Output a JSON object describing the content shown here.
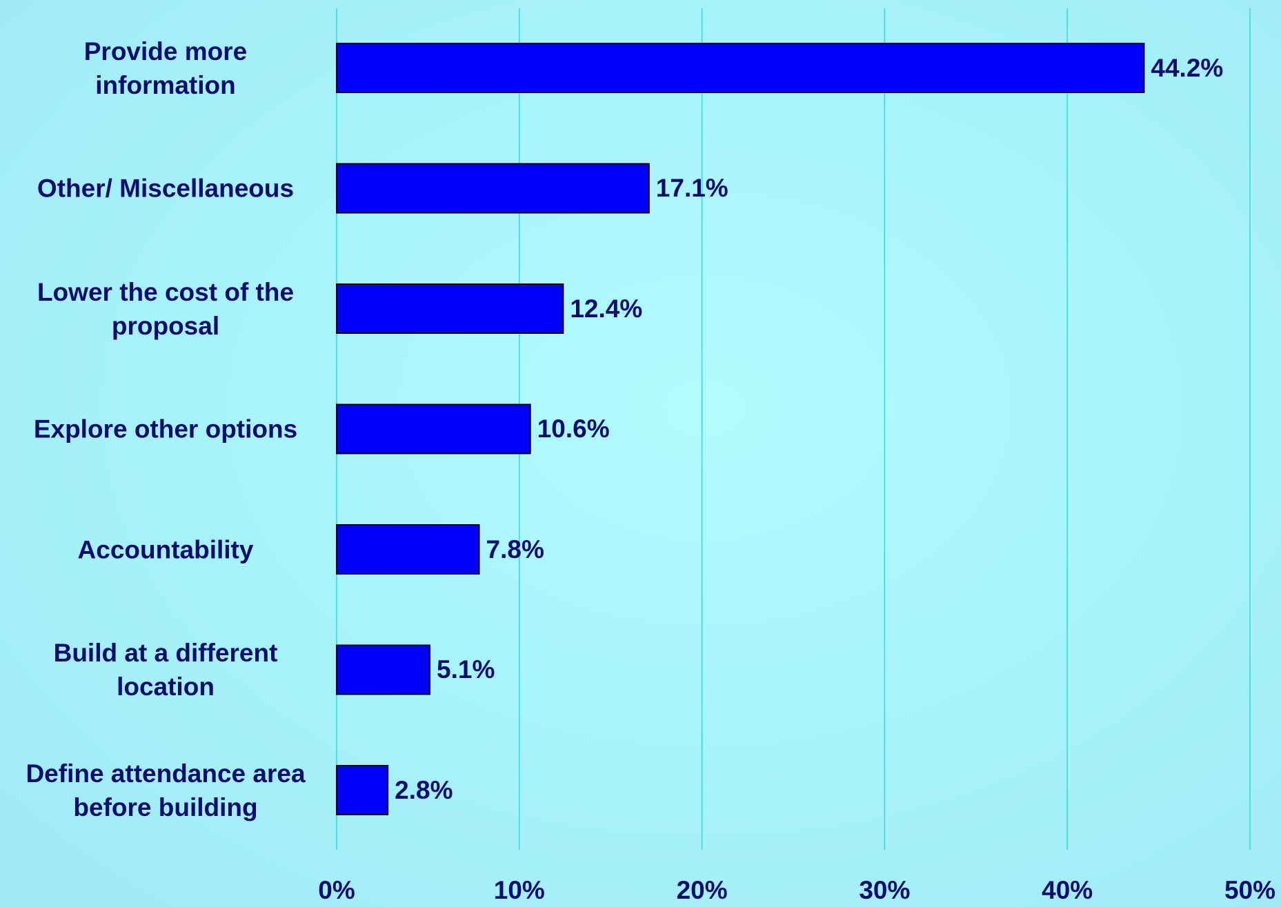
{
  "chart_data": {
    "type": "bar",
    "orientation": "horizontal",
    "categories": [
      "Provide more\ninformation",
      "Other/ Miscellaneous",
      "Lower the cost of the\nproposal",
      "Explore other options",
      "Accountability",
      "Build at a different\nlocation",
      "Define attendance area\nbefore building"
    ],
    "values": [
      44.2,
      17.1,
      12.4,
      10.6,
      7.8,
      5.1,
      2.8
    ],
    "data_labels": [
      "44.2%",
      "17.1%",
      "12.4%",
      "10.6%",
      "7.8%",
      "5.1%",
      "2.8%"
    ],
    "x_ticks": [
      "0%",
      "10%",
      "20%",
      "30%",
      "40%",
      "50%"
    ],
    "xlim": [
      0,
      50
    ],
    "grid": "vertical",
    "legend": "none",
    "colors": {
      "bar_fill": "#0000ff",
      "bar_stroke": "#000000",
      "grid": "#2fd9e0",
      "text": "#0c0c6e"
    }
  }
}
